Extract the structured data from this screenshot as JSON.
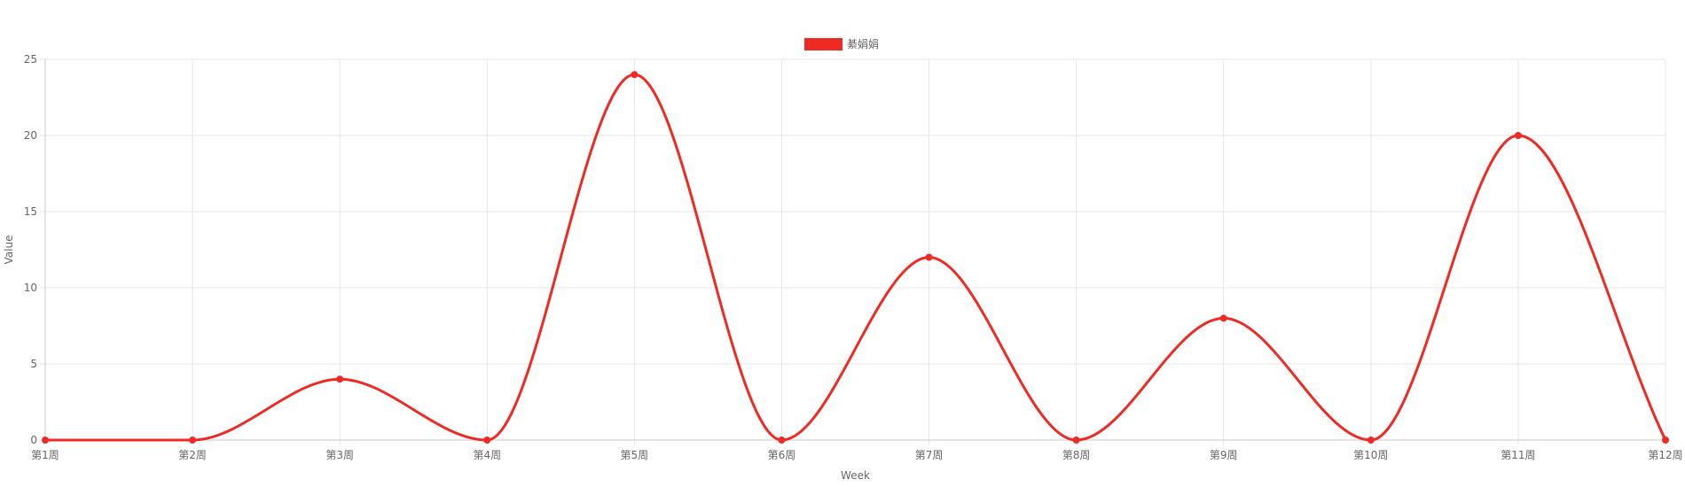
{
  "chart_data": {
    "type": "line",
    "title": "",
    "xlabel": "Week",
    "ylabel": "Value",
    "categories": [
      "第1周",
      "第2周",
      "第3周",
      "第4周",
      "第5周",
      "第6周",
      "第7周",
      "第8周",
      "第9周",
      "第10周",
      "第11周",
      "第12周"
    ],
    "series": [
      {
        "name": "綦娟娟",
        "color": "#ee2a24",
        "values": [
          0,
          0,
          4,
          0,
          24,
          0,
          12,
          0,
          8,
          0,
          20,
          0
        ]
      }
    ],
    "ylim": [
      0,
      25
    ],
    "yticks": [
      0,
      5,
      10,
      15,
      20,
      25
    ],
    "grid": true,
    "legend_position": "top-center",
    "smooth": true
  }
}
